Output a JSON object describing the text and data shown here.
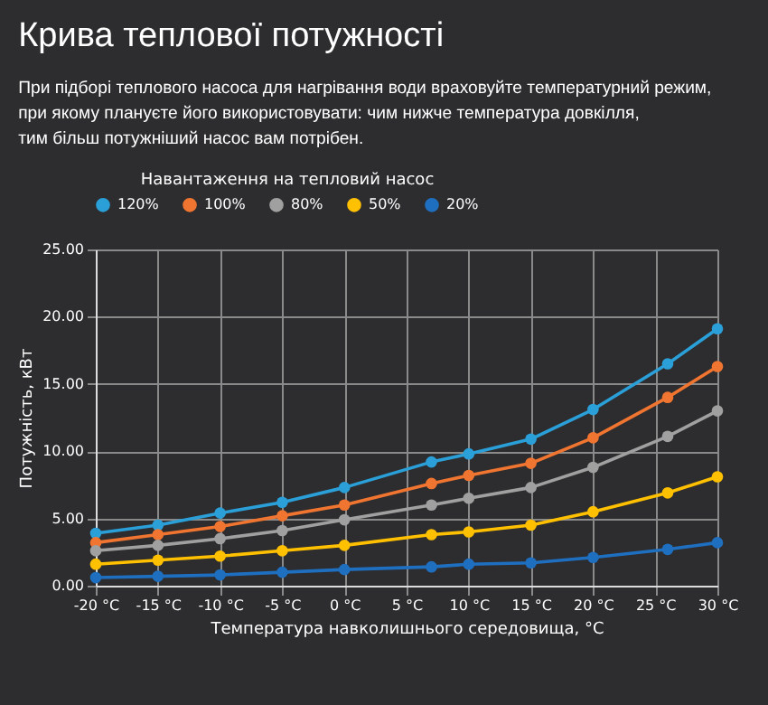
{
  "chart_data": {
    "type": "line",
    "title": "Крива теплової потужності",
    "subtitle": "При підборі теплового насоса для нагрівання води враховуйте температурний режим,\nпри якому плануєте його використовувати: чим нижче температура довкілля,\nтим більш потужніший насос вам потрібен.",
    "legend_title": "Навантаження на тепловий насос",
    "xlabel": "Температура навколишнього середовища, °С",
    "ylabel": "Потужність, кВт",
    "x": [
      -20,
      -15,
      -10,
      -5,
      0,
      7,
      10,
      15,
      20,
      26,
      30
    ],
    "series": [
      {
        "name": "120%",
        "color": "#2a9fd8",
        "values": [
          3.9,
          4.5,
          5.4,
          6.2,
          7.3,
          9.2,
          9.8,
          10.9,
          13.1,
          16.5,
          19.1
        ]
      },
      {
        "name": "100%",
        "color": "#f07530",
        "values": [
          3.2,
          3.8,
          4.4,
          5.2,
          6.0,
          7.6,
          8.2,
          9.1,
          11.0,
          14.0,
          16.3
        ]
      },
      {
        "name": "80%",
        "color": "#a0a0a0",
        "values": [
          2.6,
          3.0,
          3.5,
          4.1,
          4.9,
          6.0,
          6.5,
          7.3,
          8.8,
          11.1,
          13.0
        ]
      },
      {
        "name": "50%",
        "color": "#ffc000",
        "values": [
          1.6,
          1.9,
          2.2,
          2.6,
          3.0,
          3.8,
          4.0,
          4.5,
          5.5,
          6.9,
          8.1
        ]
      },
      {
        "name": "20%",
        "color": "#1f6fc0",
        "values": [
          0.6,
          0.7,
          0.8,
          1.0,
          1.2,
          1.4,
          1.6,
          1.7,
          2.1,
          2.7,
          3.2
        ]
      }
    ],
    "xlim": [
      -20,
      30
    ],
    "xticks": [
      {
        "value": -20,
        "label": "-20 °C"
      },
      {
        "value": -15,
        "label": "-15 °C"
      },
      {
        "value": -10,
        "label": "-10 °C"
      },
      {
        "value": -5,
        "label": "-5 °C"
      },
      {
        "value": 0,
        "label": "0 °C"
      },
      {
        "value": 5,
        "label": "5 °C"
      },
      {
        "value": 10,
        "label": "10 °C"
      },
      {
        "value": 15,
        "label": "15 °C"
      },
      {
        "value": 20,
        "label": "20 °C"
      },
      {
        "value": 25,
        "label": "25 °C"
      },
      {
        "value": 30,
        "label": "30 °C"
      }
    ],
    "ylim": [
      0,
      25
    ],
    "yticks": [
      {
        "value": 0,
        "label": "0.00"
      },
      {
        "value": 5,
        "label": "5.00"
      },
      {
        "value": 10,
        "label": "10.00"
      },
      {
        "value": 15,
        "label": "15.00"
      },
      {
        "value": 20,
        "label": "20.00"
      },
      {
        "value": 25,
        "label": "25.00"
      }
    ],
    "grid": true,
    "legend": "top",
    "marker": "circle",
    "line_style": "solid"
  }
}
